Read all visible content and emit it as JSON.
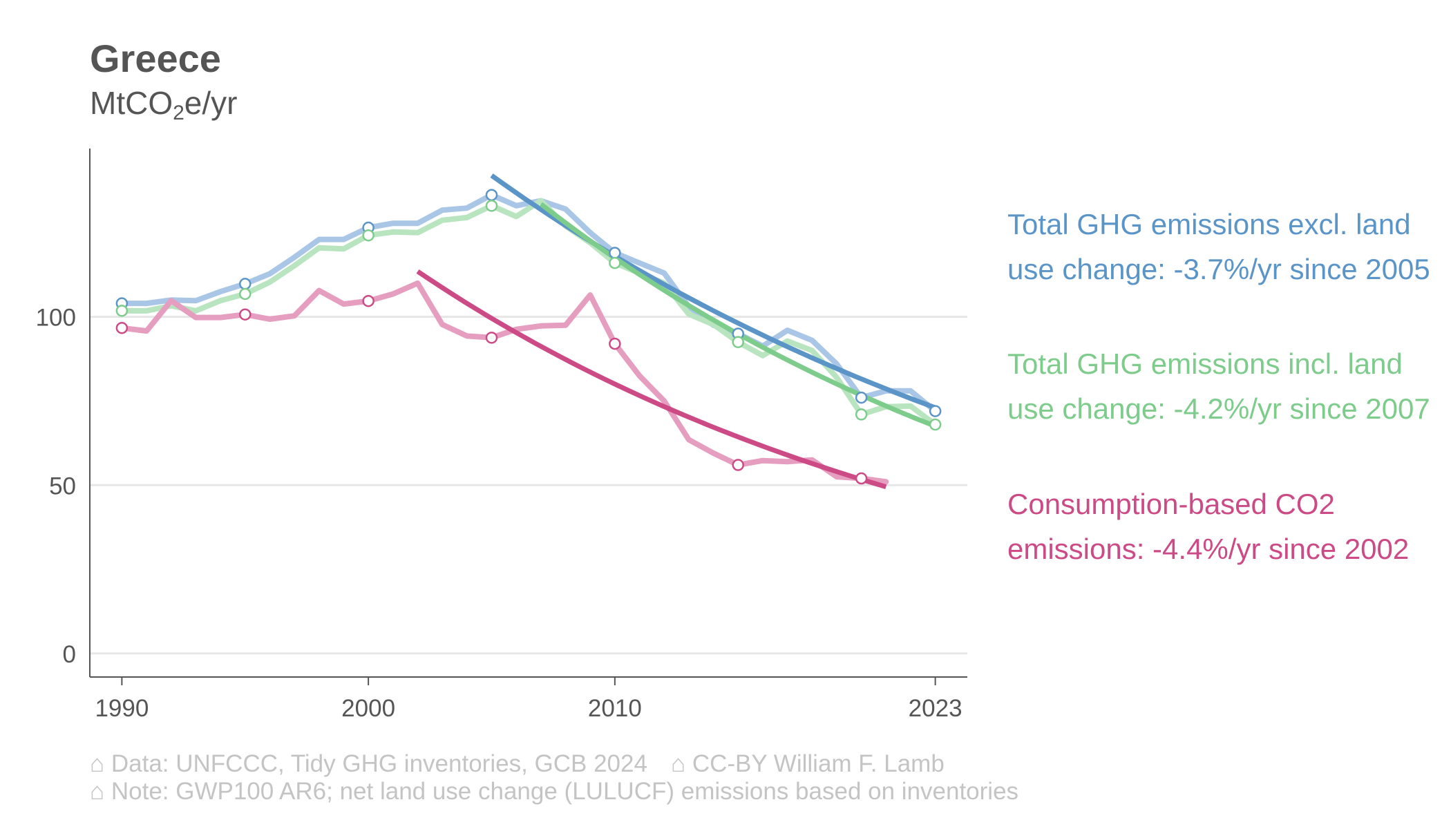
{
  "title": "Greece",
  "subtitle_prefix": "MtCO",
  "subtitle_sub": "2",
  "subtitle_suffix": "e/yr",
  "legend": [
    {
      "text": "Total GHG emissions excl. land use change: -3.7%/yr since 2005",
      "color": "#5b95c8"
    },
    {
      "text": "Total GHG emissions incl. land use change: -4.2%/yr since 2007",
      "color": "#7dcc8c"
    },
    {
      "text": "Consumption-based CO2 emissions: -4.4%/yr since 2002",
      "color": "#cc4a86"
    }
  ],
  "footer": {
    "line1_a": "⌂ Data: UNFCCC, Tidy GHG inventories, GCB 2024",
    "line1_b": "⌂ CC-BY William F. Lamb",
    "line2": "⌂ Note: GWP100 AR6; net land use change (LULUCF) emissions based on inventories"
  },
  "chart_data": {
    "type": "line",
    "ylim": [
      -7,
      150
    ],
    "xlim": [
      1988.7,
      2024.3
    ],
    "y_ticks": [
      0,
      50,
      100
    ],
    "x_ticks": [
      1990,
      2000,
      2010,
      2023
    ],
    "grid": true,
    "series": [
      {
        "name": "Total GHG emissions excl. land use change",
        "color": "#a9c6e6",
        "markers": [
          1990,
          1995,
          2000,
          2005,
          2010,
          2015,
          2020,
          2023
        ],
        "x": [
          1990,
          1991,
          1992,
          1993,
          1994,
          1995,
          1996,
          1997,
          1998,
          1999,
          2000,
          2001,
          2002,
          2003,
          2004,
          2005,
          2006,
          2007,
          2008,
          2009,
          2010,
          2011,
          2012,
          2013,
          2014,
          2015,
          2016,
          2017,
          2018,
          2019,
          2020,
          2021,
          2022,
          2023
        ],
        "values": [
          104,
          104,
          105,
          104.8,
          107.5,
          109.8,
          112.8,
          117.7,
          123,
          123,
          126.5,
          127.8,
          127.8,
          131.7,
          132.3,
          136.2,
          133,
          134.5,
          132,
          125,
          119,
          116,
          113,
          103,
          97.5,
          95,
          91.3,
          96,
          93,
          86,
          76,
          78,
          78,
          72
        ]
      },
      {
        "name": "Total GHG emissions incl. land use change",
        "color": "#b9e4c0",
        "markers": [
          1990,
          1995,
          2000,
          2005,
          2010,
          2015,
          2020,
          2023
        ],
        "x": [
          1990,
          1991,
          1992,
          1993,
          1994,
          1995,
          1996,
          1997,
          1998,
          1999,
          2000,
          2001,
          2002,
          2003,
          2004,
          2005,
          2006,
          2007,
          2008,
          2009,
          2010,
          2011,
          2012,
          2013,
          2014,
          2015,
          2016,
          2017,
          2018,
          2019,
          2020,
          2021,
          2022,
          2023
        ],
        "values": [
          101.8,
          101.8,
          103.3,
          101.8,
          104.8,
          106.8,
          110.3,
          115.2,
          120.5,
          120.2,
          124.2,
          125.2,
          125,
          128.7,
          129.5,
          133,
          129.8,
          134.5,
          127,
          122,
          116,
          113,
          110,
          100.8,
          97.7,
          92.5,
          88.5,
          92.8,
          90,
          82,
          71,
          73.3,
          73.5,
          68
        ]
      },
      {
        "name": "Consumption-based CO2 emissions",
        "color": "#e69ec0",
        "markers": [
          1990,
          1995,
          2000,
          2005,
          2010,
          2015,
          2020
        ],
        "x": [
          1990,
          1991,
          1992,
          1993,
          1994,
          1995,
          1996,
          1997,
          1998,
          1999,
          2000,
          2001,
          2002,
          2003,
          2004,
          2005,
          2006,
          2007,
          2008,
          2009,
          2010,
          2011,
          2012,
          2013,
          2014,
          2015,
          2016,
          2017,
          2018,
          2019,
          2020,
          2021
        ],
        "values": [
          96.7,
          95.8,
          104.8,
          99.8,
          99.8,
          100.7,
          99.3,
          100.3,
          107.8,
          103.8,
          104.7,
          106.8,
          110,
          97.7,
          94.3,
          93.8,
          96.3,
          97.3,
          97.5,
          106.5,
          92,
          82.5,
          75,
          63.5,
          59.5,
          56,
          57.3,
          57,
          57.5,
          52.5,
          52,
          51
        ]
      }
    ],
    "trends": [
      {
        "name": "Trend excl. land use change",
        "color": "#5b95c8",
        "x": [
          2005,
          2023
        ],
        "values": [
          142,
          73
        ]
      },
      {
        "name": "Trend incl. land use change",
        "color": "#7dcc8c",
        "x": [
          2007,
          2023
        ],
        "values": [
          133.5,
          67.5
        ]
      },
      {
        "name": "Trend consumption-based CO2",
        "color": "#cc4a86",
        "x": [
          2002,
          2021
        ],
        "values": [
          113.5,
          49.5
        ]
      }
    ]
  }
}
